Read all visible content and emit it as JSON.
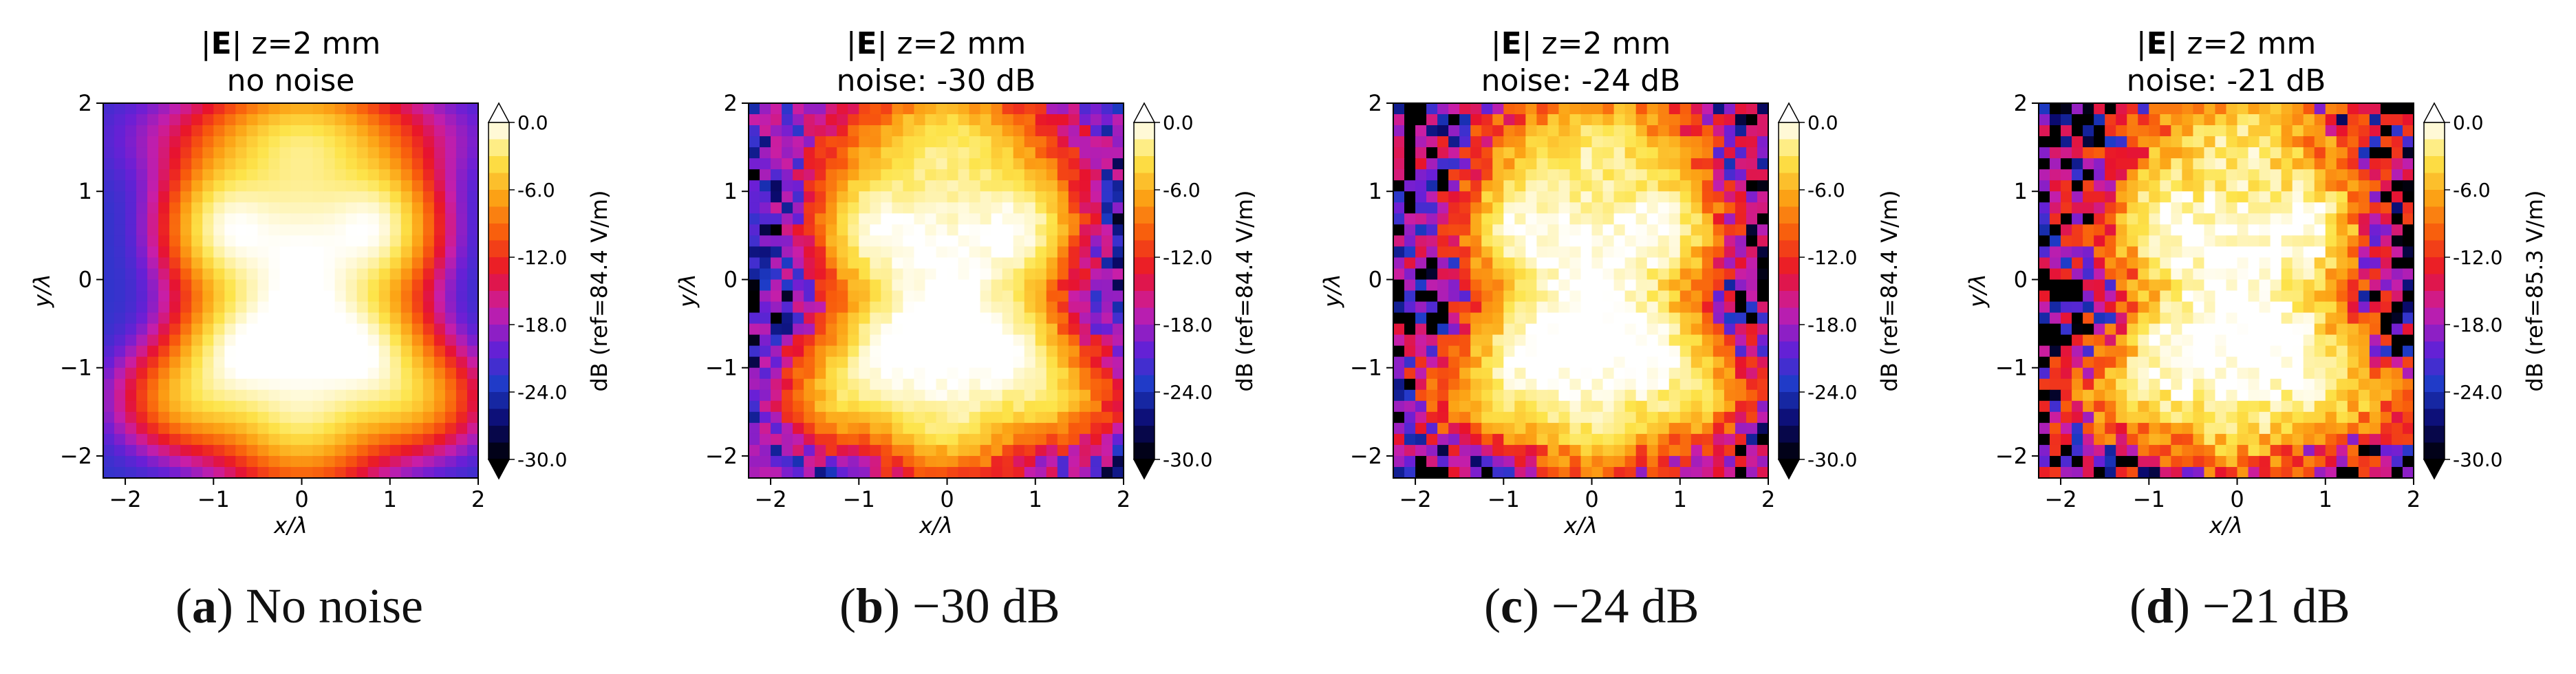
{
  "chart_data": [
    {
      "type": "heatmap",
      "title_line1_prefix": "|",
      "title_bold": "E",
      "title_line1_suffix": "| z=2 mm",
      "title_line2": "no noise",
      "xlabel": "x/λ",
      "ylabel": "y/λ",
      "x_ticks": [
        "−2",
        "−1",
        "0",
        "1",
        "2"
      ],
      "y_ticks": [
        "2",
        "1",
        "0",
        "−1",
        "−2"
      ],
      "xlim": [
        -2.25,
        2
      ],
      "ylim": [
        -2.25,
        2
      ],
      "colorbar_ticks": [
        "0.0",
        "-6.0",
        "-12.0",
        "-18.0",
        "-24.0",
        "-30.0"
      ],
      "colorbar_range": [
        -30,
        0
      ],
      "colorbar_label": "dB (ref=84.4 V/m)",
      "noise_db": null,
      "caption_letter": "a",
      "caption_text": "No noise"
    },
    {
      "type": "heatmap",
      "title_line1_prefix": "|",
      "title_bold": "E",
      "title_line1_suffix": "| z=2 mm",
      "title_line2": "noise: -30 dB",
      "xlabel": "x/λ",
      "ylabel": "y/λ",
      "x_ticks": [
        "−2",
        "−1",
        "0",
        "1",
        "2"
      ],
      "y_ticks": [
        "2",
        "1",
        "0",
        "−1",
        "−2"
      ],
      "xlim": [
        -2.25,
        2
      ],
      "ylim": [
        -2.25,
        2
      ],
      "colorbar_ticks": [
        "0.0",
        "-6.0",
        "-12.0",
        "-18.0",
        "-24.0",
        "-30.0"
      ],
      "colorbar_range": [
        -30,
        0
      ],
      "colorbar_label": "dB (ref=84.4 V/m)",
      "noise_db": -30,
      "caption_letter": "b",
      "caption_text": "−30 dB"
    },
    {
      "type": "heatmap",
      "title_line1_prefix": "|",
      "title_bold": "E",
      "title_line1_suffix": "| z=2 mm",
      "title_line2": "noise: -24 dB",
      "xlabel": "x/λ",
      "ylabel": "y/λ",
      "x_ticks": [
        "−2",
        "−1",
        "0",
        "1",
        "2"
      ],
      "y_ticks": [
        "2",
        "1",
        "0",
        "−1",
        "−2"
      ],
      "xlim": [
        -2.25,
        2
      ],
      "ylim": [
        -2.25,
        2
      ],
      "colorbar_ticks": [
        "0.0",
        "-6.0",
        "-12.0",
        "-18.0",
        "-24.0",
        "-30.0"
      ],
      "colorbar_range": [
        -30,
        0
      ],
      "colorbar_label": "dB (ref=84.4 V/m)",
      "noise_db": -24,
      "caption_letter": "c",
      "caption_text": "−24 dB"
    },
    {
      "type": "heatmap",
      "title_line1_prefix": "|",
      "title_bold": "E",
      "title_line1_suffix": "| z=2 mm",
      "title_line2": "noise: -21 dB",
      "xlabel": "x/λ",
      "ylabel": "y/λ",
      "x_ticks": [
        "−2",
        "−1",
        "0",
        "1",
        "2"
      ],
      "y_ticks": [
        "2",
        "1",
        "0",
        "−1",
        "−2"
      ],
      "xlim": [
        -2.25,
        2
      ],
      "ylim": [
        -2.25,
        2
      ],
      "colorbar_ticks": [
        "0.0",
        "-6.0",
        "-12.0",
        "-18.0",
        "-24.0",
        "-30.0"
      ],
      "colorbar_range": [
        -30,
        0
      ],
      "colorbar_label": "dB (ref=85.3 V/m)",
      "noise_db": -21,
      "caption_letter": "d",
      "caption_text": "−21 dB"
    }
  ],
  "colormap": [
    "#000000",
    "#0a0a6e",
    "#1e3cc8",
    "#6a1fd6",
    "#c81ea8",
    "#e8132b",
    "#f85a0c",
    "#fca315",
    "#fde44a",
    "#ffffff"
  ]
}
